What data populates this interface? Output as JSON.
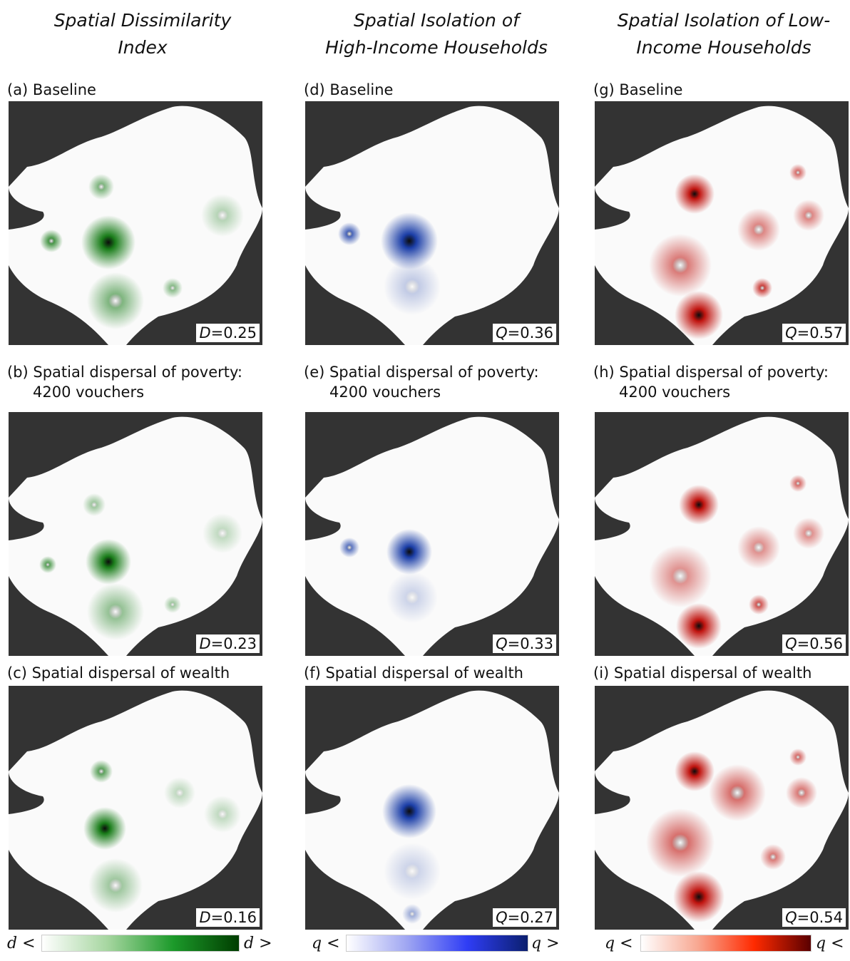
{
  "columns": [
    {
      "title_line1": "Spatial Dissimilarity",
      "title_line2": "Index"
    },
    {
      "title_line1": "Spatial Isolation of",
      "title_line2": "High-Income Households"
    },
    {
      "title_line1": "Spatial Isolation of Low-",
      "title_line2": "Income Households"
    }
  ],
  "panels": [
    {
      "caption_line1": "(a) Baseline",
      "caption_line2": "",
      "stat_symbol": "D",
      "stat_value": "=0.25",
      "color": "#1a7d1a",
      "col": 0,
      "row": 0
    },
    {
      "caption_line1": "(b) Spatial dispersal of poverty:",
      "caption_line2": "4200 vouchers",
      "stat_symbol": "D",
      "stat_value": "=0.23",
      "color": "#1a7d1a",
      "col": 0,
      "row": 1
    },
    {
      "caption_line1": "(c) Spatial dispersal of wealth",
      "caption_line2": "",
      "stat_symbol": "D",
      "stat_value": "=0.16",
      "color": "#1a7d1a",
      "col": 0,
      "row": 2
    },
    {
      "caption_line1": "(d) Baseline",
      "caption_line2": "",
      "stat_symbol": "Q",
      "stat_value": "=0.36",
      "color": "#1c3fa8",
      "col": 1,
      "row": 0
    },
    {
      "caption_line1": "(e) Spatial dispersal of poverty:",
      "caption_line2": "4200 vouchers",
      "stat_symbol": "Q",
      "stat_value": "=0.33",
      "color": "#1c3fa8",
      "col": 1,
      "row": 1
    },
    {
      "caption_line1": "(f) Spatial dispersal of wealth",
      "caption_line2": "",
      "stat_symbol": "Q",
      "stat_value": "=0.27",
      "color": "#1c3fa8",
      "col": 1,
      "row": 2
    },
    {
      "caption_line1": "(g) Baseline",
      "caption_line2": "",
      "stat_symbol": "Q",
      "stat_value": "=0.57",
      "color": "#c0140f",
      "col": 2,
      "row": 0
    },
    {
      "caption_line1": "(h) Spatial dispersal of poverty:",
      "caption_line2": "4200 vouchers",
      "stat_symbol": "Q",
      "stat_value": "=0.56",
      "color": "#c0140f",
      "col": 2,
      "row": 1
    },
    {
      "caption_line1": "(i) Spatial dispersal of wealth",
      "caption_line2": "",
      "stat_symbol": "Q",
      "stat_value": "=0.54",
      "color": "#c0140f",
      "col": 2,
      "row": 2
    }
  ],
  "colorbars": [
    {
      "left_label": "d <",
      "right_label": "d >",
      "colors": [
        "#ffffff",
        "#a6d6a0",
        "#1c9a2a",
        "#003d00"
      ]
    },
    {
      "left_label": "q <",
      "right_label": "q >",
      "colors": [
        "#ffffff",
        "#9fa6f2",
        "#2f3df5",
        "#0b1f6e"
      ]
    },
    {
      "left_label": "q <",
      "right_label": "q <",
      "colors": [
        "#ffffff",
        "#f8a892",
        "#ff2a00",
        "#5a0000"
      ]
    }
  ],
  "colors": {
    "panel_background": "#333333",
    "map_fill": "#fafafa"
  }
}
